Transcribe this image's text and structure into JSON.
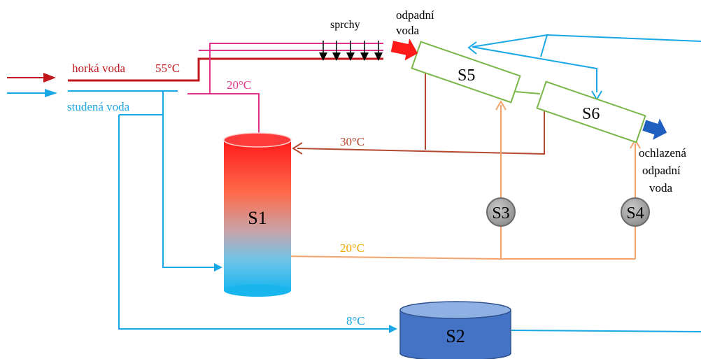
{
  "labels": {
    "hot_water": "horká voda",
    "hot_temp": "55°C",
    "cold_water": "studená voda",
    "showers": "sprchy",
    "waste_water_1": "odpadní",
    "waste_water_2": "voda",
    "cooled_1": "ochlazená",
    "cooled_2": "odpadní",
    "cooled_3": "voda",
    "temp_20_top": "20°C",
    "temp_30": "30°C",
    "temp_20_mid": "20°C",
    "temp_8": "8°C"
  },
  "components": {
    "s1": "S1",
    "s2": "S2",
    "s3": "S3",
    "s4": "S4",
    "s5": "S5",
    "s6": "S6"
  },
  "colors": {
    "hot": "#c0171c",
    "cold": "#1aa7e6",
    "pink": "#e0348c",
    "brown": "#b5492f",
    "orange": "#f2a36b",
    "orange_text": "#f0a800",
    "green": "#7ab648",
    "pump": "#9e9e9e",
    "tank_blue": "#4472c4",
    "arrow_red": "#ff1a1a",
    "arrow_blue": "#1f5fbf"
  }
}
